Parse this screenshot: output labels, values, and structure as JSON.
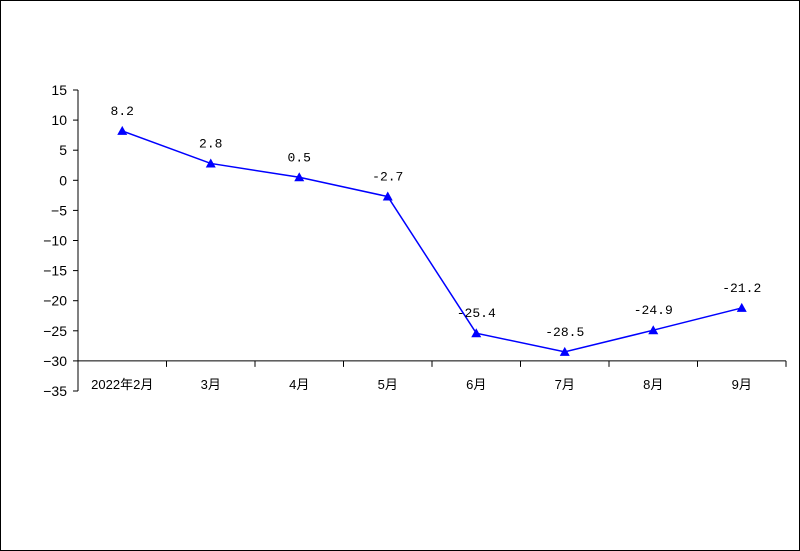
{
  "chart_data": {
    "type": "line",
    "title": "",
    "xlabel": "",
    "ylabel": "",
    "categories": [
      "2022年2月",
      "3月",
      "4月",
      "5月",
      "6月",
      "7月",
      "8月",
      "9月"
    ],
    "series": [
      {
        "values": [
          8.2,
          2.8,
          0.5,
          -2.7,
          -25.4,
          -28.5,
          -24.9,
          -21.2
        ],
        "labels": [
          "8.2",
          "2.8",
          "0.5",
          "-2.7",
          "-25.4",
          "-28.5",
          "-24.9",
          "-21.2"
        ],
        "color": "#0000ff",
        "marker": "triangle"
      }
    ],
    "ylim": [
      -35,
      15
    ],
    "yticks": [
      15,
      10,
      5,
      0,
      -5,
      -10,
      -15,
      -20,
      -25,
      -30,
      -35
    ],
    "ytick_labels": [
      "15",
      "10",
      "5",
      "0",
      "−5",
      "−10",
      "−15",
      "−20",
      "−25",
      "−30",
      "−35"
    ],
    "x_axis_at": -30,
    "grid": false,
    "legend": "none"
  }
}
